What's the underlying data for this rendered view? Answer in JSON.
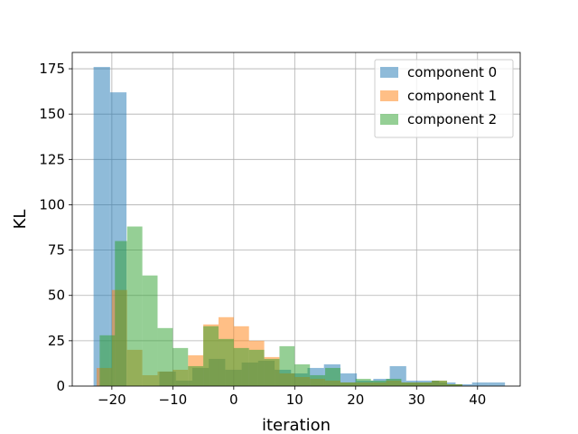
{
  "chart_data": {
    "type": "histogram",
    "xlabel": "iteration",
    "ylabel": "KL",
    "xlim": [
      -26.5,
      47
    ],
    "ylim": [
      0,
      184
    ],
    "xticks": [
      -20,
      -10,
      0,
      10,
      20,
      30,
      40
    ],
    "yticks": [
      0,
      25,
      50,
      75,
      100,
      125,
      150,
      175
    ],
    "grid": true,
    "legend_position": "top-right",
    "series": [
      {
        "name": "component 0",
        "color": "#1f77b4",
        "bins": [
          [
            -23.0,
            -20.3,
            176
          ],
          [
            -20.3,
            -17.6,
            162
          ],
          [
            -17.6,
            -14.9,
            0
          ],
          [
            -14.9,
            -12.2,
            0
          ],
          [
            -12.2,
            -9.5,
            8
          ],
          [
            -9.5,
            -6.8,
            3
          ],
          [
            -6.8,
            -4.1,
            10
          ],
          [
            -4.1,
            -1.4,
            15
          ],
          [
            -1.4,
            1.3,
            9
          ],
          [
            1.3,
            4.0,
            13
          ],
          [
            4.0,
            6.7,
            14
          ],
          [
            6.7,
            9.4,
            9
          ],
          [
            9.4,
            12.1,
            7
          ],
          [
            12.1,
            14.8,
            10
          ],
          [
            14.8,
            17.5,
            12
          ],
          [
            17.5,
            20.2,
            7
          ],
          [
            20.2,
            22.9,
            3
          ],
          [
            22.9,
            25.6,
            4
          ],
          [
            25.6,
            28.3,
            11
          ],
          [
            28.3,
            31.0,
            3
          ],
          [
            31.0,
            33.7,
            3
          ],
          [
            33.7,
            36.4,
            2
          ],
          [
            36.4,
            39.1,
            1
          ],
          [
            39.1,
            41.8,
            2
          ],
          [
            41.8,
            44.5,
            2
          ]
        ]
      },
      {
        "name": "component 1",
        "color": "#ff7f0e",
        "bins": [
          [
            -22.5,
            -20.0,
            10
          ],
          [
            -20.0,
            -17.5,
            53
          ],
          [
            -17.5,
            -15.0,
            20
          ],
          [
            -15.0,
            -12.5,
            6
          ],
          [
            -12.5,
            -10.0,
            8
          ],
          [
            -10.0,
            -7.5,
            9
          ],
          [
            -7.5,
            -5.0,
            17
          ],
          [
            -5.0,
            -2.5,
            34
          ],
          [
            -2.5,
            0.0,
            38
          ],
          [
            0.0,
            2.5,
            33
          ],
          [
            2.5,
            5.0,
            25
          ],
          [
            5.0,
            7.5,
            16
          ],
          [
            7.5,
            10.0,
            7
          ],
          [
            10.0,
            12.5,
            5
          ],
          [
            12.5,
            15.0,
            4
          ],
          [
            15.0,
            17.5,
            3
          ],
          [
            17.5,
            20.0,
            2
          ],
          [
            20.0,
            22.5,
            2
          ],
          [
            22.5,
            25.0,
            2
          ],
          [
            25.0,
            27.5,
            3
          ],
          [
            27.5,
            30.0,
            2
          ],
          [
            30.0,
            32.5,
            2
          ],
          [
            32.5,
            35.0,
            3
          ],
          [
            35.0,
            37.5,
            1
          ]
        ]
      },
      {
        "name": "component 2",
        "color": "#2ca02c",
        "bins": [
          [
            -22.0,
            -19.5,
            28
          ],
          [
            -19.5,
            -17.5,
            80
          ],
          [
            -17.5,
            -15.0,
            88
          ],
          [
            -15.0,
            -12.5,
            61
          ],
          [
            -12.5,
            -10.0,
            32
          ],
          [
            -10.0,
            -7.5,
            21
          ],
          [
            -7.5,
            -5.0,
            11
          ],
          [
            -5.0,
            -2.5,
            33
          ],
          [
            -2.5,
            0.0,
            26
          ],
          [
            0.0,
            2.5,
            21
          ],
          [
            2.5,
            5.0,
            20
          ],
          [
            5.0,
            7.5,
            15
          ],
          [
            7.5,
            10.0,
            22
          ],
          [
            10.0,
            12.5,
            12
          ],
          [
            12.5,
            15.0,
            6
          ],
          [
            15.0,
            17.5,
            10
          ],
          [
            17.5,
            20.0,
            2
          ],
          [
            20.0,
            22.5,
            4
          ],
          [
            22.5,
            25.0,
            3
          ],
          [
            25.0,
            27.5,
            4
          ],
          [
            27.5,
            30.0,
            2
          ],
          [
            30.0,
            32.5,
            2
          ],
          [
            32.5,
            35.0,
            3
          ],
          [
            35.0,
            37.5,
            1
          ]
        ]
      }
    ]
  }
}
